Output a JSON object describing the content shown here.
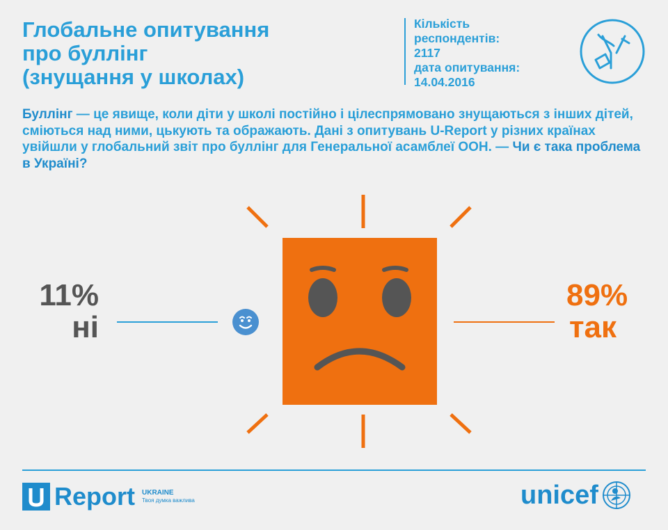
{
  "title_lines": [
    "Глобальне опитування",
    "про буллінг",
    "(знущання у школах)"
  ],
  "meta": {
    "respondents_label": "Кількість",
    "respondents_label2": "респондентів:",
    "respondents_value": "2117",
    "date_label": "дата опитування:",
    "date_value": "14.04.2016"
  },
  "intro": {
    "term": "Буллінг",
    "text": " — це явище, коли діти у школі постійно і цілеспрямовано знущаються з інших дітей, сміються над ними, цькують та ображають. Дані з опитувань U-Report у різних країнах увійшли у глобальний звіт про буллінг для Генеральної асамблеї ООН. — ",
    "question": "Чи є така проблема в Україні?"
  },
  "chart_data": {
    "type": "table",
    "categories": [
      "ні",
      "так"
    ],
    "values": [
      11,
      89
    ],
    "value_labels": [
      "11%",
      "89%"
    ],
    "colors": [
      "#555555",
      "#ef7010"
    ]
  },
  "colors": {
    "accent_blue": "#2a9fd8",
    "accent_orange": "#ef7010",
    "background": "#f0f0f0"
  },
  "footer": {
    "ureport_word": "Report",
    "ureport_letter": "U",
    "ukraine": "UKRAINE",
    "tagline": "Твоя думка важлива",
    "unicef": "unicef"
  }
}
